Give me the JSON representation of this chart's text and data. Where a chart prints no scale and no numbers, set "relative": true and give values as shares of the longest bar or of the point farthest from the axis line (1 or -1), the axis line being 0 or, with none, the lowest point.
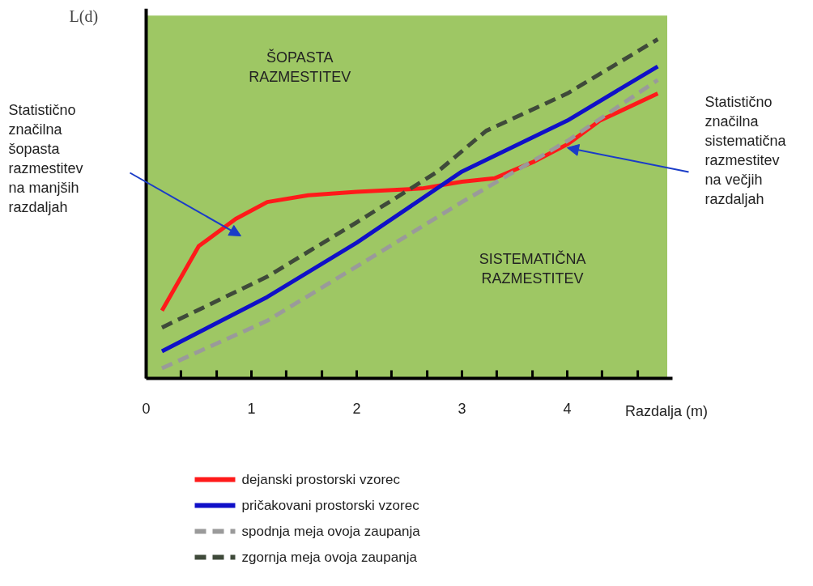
{
  "chart_data": {
    "type": "line",
    "relative": true,
    "xlabel": "Razdalja (m)",
    "ylabel": "L(d)",
    "xlim": [
      0,
      4.95
    ],
    "xticks": [
      0,
      {
        "value": 0.33,
        "label": null
      },
      {
        "value": 0.67,
        "label": null
      },
      1,
      {
        "value": 1.33,
        "label": null
      },
      {
        "value": 1.67,
        "label": null
      },
      2,
      {
        "value": 2.33,
        "label": null
      },
      {
        "value": 2.67,
        "label": null
      },
      3,
      {
        "value": 3.33,
        "label": null
      },
      {
        "value": 3.67,
        "label": null
      },
      4,
      {
        "value": 4.33,
        "label": null
      },
      {
        "value": 4.67,
        "label": null
      }
    ],
    "grid": false,
    "legend": "bottom",
    "bands": [
      {
        "axis": "x",
        "from": 0,
        "to": 4.95,
        "color": "#9ec764"
      }
    ],
    "series": [
      {
        "name": "dejanski prostorski vzorec",
        "color": "#ff1a1a",
        "line_style": "solid",
        "x": [
          0.15,
          0.5,
          0.85,
          1.15,
          1.54,
          2.0,
          2.62,
          3.0,
          3.31,
          3.69,
          4.0,
          4.31,
          4.86
        ],
        "values": [
          0.2,
          0.39,
          0.47,
          0.52,
          0.54,
          0.55,
          0.56,
          0.58,
          0.59,
          0.64,
          0.69,
          0.76,
          0.84
        ]
      },
      {
        "name": "pričakovani prostorski vzorec",
        "color": "#1010c8",
        "line_style": "solid",
        "x": [
          0.15,
          1.15,
          2.0,
          3.0,
          4.0,
          4.86
        ],
        "values": [
          0.08,
          0.24,
          0.4,
          0.61,
          0.76,
          0.92
        ]
      },
      {
        "name": "spodnja meja ovoja zaupanja",
        "color": "#9a9a9a",
        "line_style": "dashed",
        "x": [
          0.15,
          1.15,
          2.0,
          3.0,
          4.0,
          4.86
        ],
        "values": [
          0.03,
          0.17,
          0.33,
          0.52,
          0.7,
          0.88
        ]
      },
      {
        "name": "zgornja meja ovoja zaupanja",
        "color": "#3f4a3a",
        "line_style": "dashed",
        "x": [
          0.15,
          1.15,
          2.0,
          2.77,
          3.23,
          4.0,
          4.86
        ],
        "values": [
          0.15,
          0.3,
          0.46,
          0.61,
          0.73,
          0.84,
          1.0
        ]
      }
    ],
    "annotations": [
      "ŠOPASTA\nRAZMESTITEV",
      "SISTEMATIČNA\nRAZMESTITEV",
      "Statistično\nznačilna\nšopasta\nrazmestitev\nna manjših\nrazdaljah",
      "Statistično\nznačilna\nsistematična\nrazmestitev\nna večjih\nrazdaljah"
    ]
  }
}
